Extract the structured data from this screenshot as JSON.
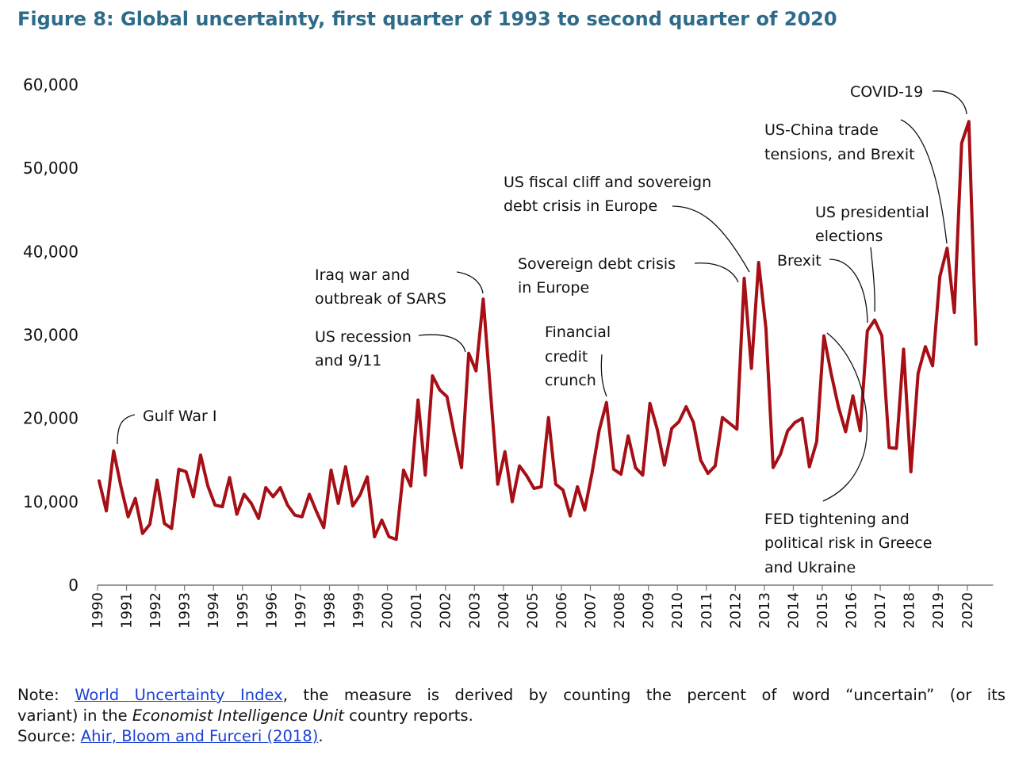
{
  "title": "Figure 8: Global uncertainty, first quarter of 1993 to second quarter of 2020",
  "note": {
    "note_label": "Note:",
    "link1_text": "World Uncertainty Index",
    "line1_rest": ", the measure is derived by counting the percent of word “uncertain” (or its",
    "line2_pre": "variant) in the ",
    "line2_italic": "Economist Intelligence Unit",
    "line2_post": " country reports.",
    "source_label": "Source:",
    "link2_text": "Ahir, Bloom and Furceri (2018)",
    "source_end": "."
  },
  "chart_data": {
    "type": "line",
    "title": "Figure 8: Global uncertainty, first quarter of 1993 to second quarter of 2020",
    "xlabel": "",
    "ylabel": "",
    "ylim": [
      0,
      60000
    ],
    "yticks": [
      0,
      10000,
      20000,
      30000,
      40000,
      50000,
      60000
    ],
    "ytick_labels": [
      "0",
      "10,000",
      "20,000",
      "30,000",
      "40,000",
      "50,000",
      "60,000"
    ],
    "xtick_labels": [
      "1990",
      "1991",
      "1992",
      "1993",
      "1994",
      "1995",
      "1996",
      "1997",
      "1998",
      "1999",
      "2000",
      "2001",
      "2002",
      "2003",
      "2004",
      "2005",
      "2006",
      "2007",
      "2008",
      "2009",
      "2010",
      "2011",
      "2012",
      "2013",
      "2014",
      "2015",
      "2016",
      "2017",
      "2018",
      "2019",
      "2020"
    ],
    "x_start": 1990,
    "grid": false,
    "legend": "none",
    "line_color": "#a50f15",
    "series": [
      {
        "values": [
          12500,
          8900,
          16100,
          11900,
          8200,
          10400,
          6200,
          7300,
          12600,
          7400,
          6800,
          13900,
          13600,
          10600,
          15600,
          11900,
          9600,
          9400,
          12900,
          8500,
          10900,
          9800,
          8000,
          11700,
          10600,
          11700,
          9600,
          8400,
          8200,
          10900,
          8800,
          6900,
          13800,
          9800,
          14200,
          9500,
          10800,
          13000,
          5800,
          7800,
          5800,
          5500,
          13800,
          11900,
          22200,
          13200,
          25100,
          23400,
          22600,
          18100,
          14100,
          27800,
          25700,
          34300,
          23100,
          12100,
          16000,
          10000,
          14300,
          13100,
          11600,
          11800,
          20100,
          12100,
          11400,
          8300,
          11800,
          9000,
          13400,
          18600,
          21900,
          13900,
          13300,
          17900,
          14100,
          13200,
          21800,
          18700,
          14400,
          18800,
          19600,
          21400,
          19500,
          15000,
          13400,
          14300,
          20100,
          19400,
          18700,
          36800,
          26000,
          38700,
          30800,
          14100,
          15700,
          18500,
          19500,
          20000,
          14200,
          17200,
          29900,
          25400,
          21400,
          18400,
          22700,
          18500,
          30500,
          31800,
          29900,
          16500,
          16400,
          28300,
          13600,
          25400,
          28600,
          26300,
          37000,
          40400,
          32700,
          53000,
          55600,
          28900
        ]
      }
    ],
    "annotations": [
      {
        "text": "Gulf War I"
      },
      {
        "text": "Iraq war and outbreak of SARS"
      },
      {
        "text": "US recession and 9/11"
      },
      {
        "text": "Financial credit crunch"
      },
      {
        "text": "Sovereign debt crisis in Europe"
      },
      {
        "text": "US fiscal cliff and sovereign debt crisis in Europe"
      },
      {
        "text": "Brexit"
      },
      {
        "text": "US presidential elections"
      },
      {
        "text": "US-China trade tensions, and Brexit"
      },
      {
        "text": "COVID-19"
      },
      {
        "text": "FED tightening and political risk in Greece and Ukraine"
      }
    ]
  }
}
